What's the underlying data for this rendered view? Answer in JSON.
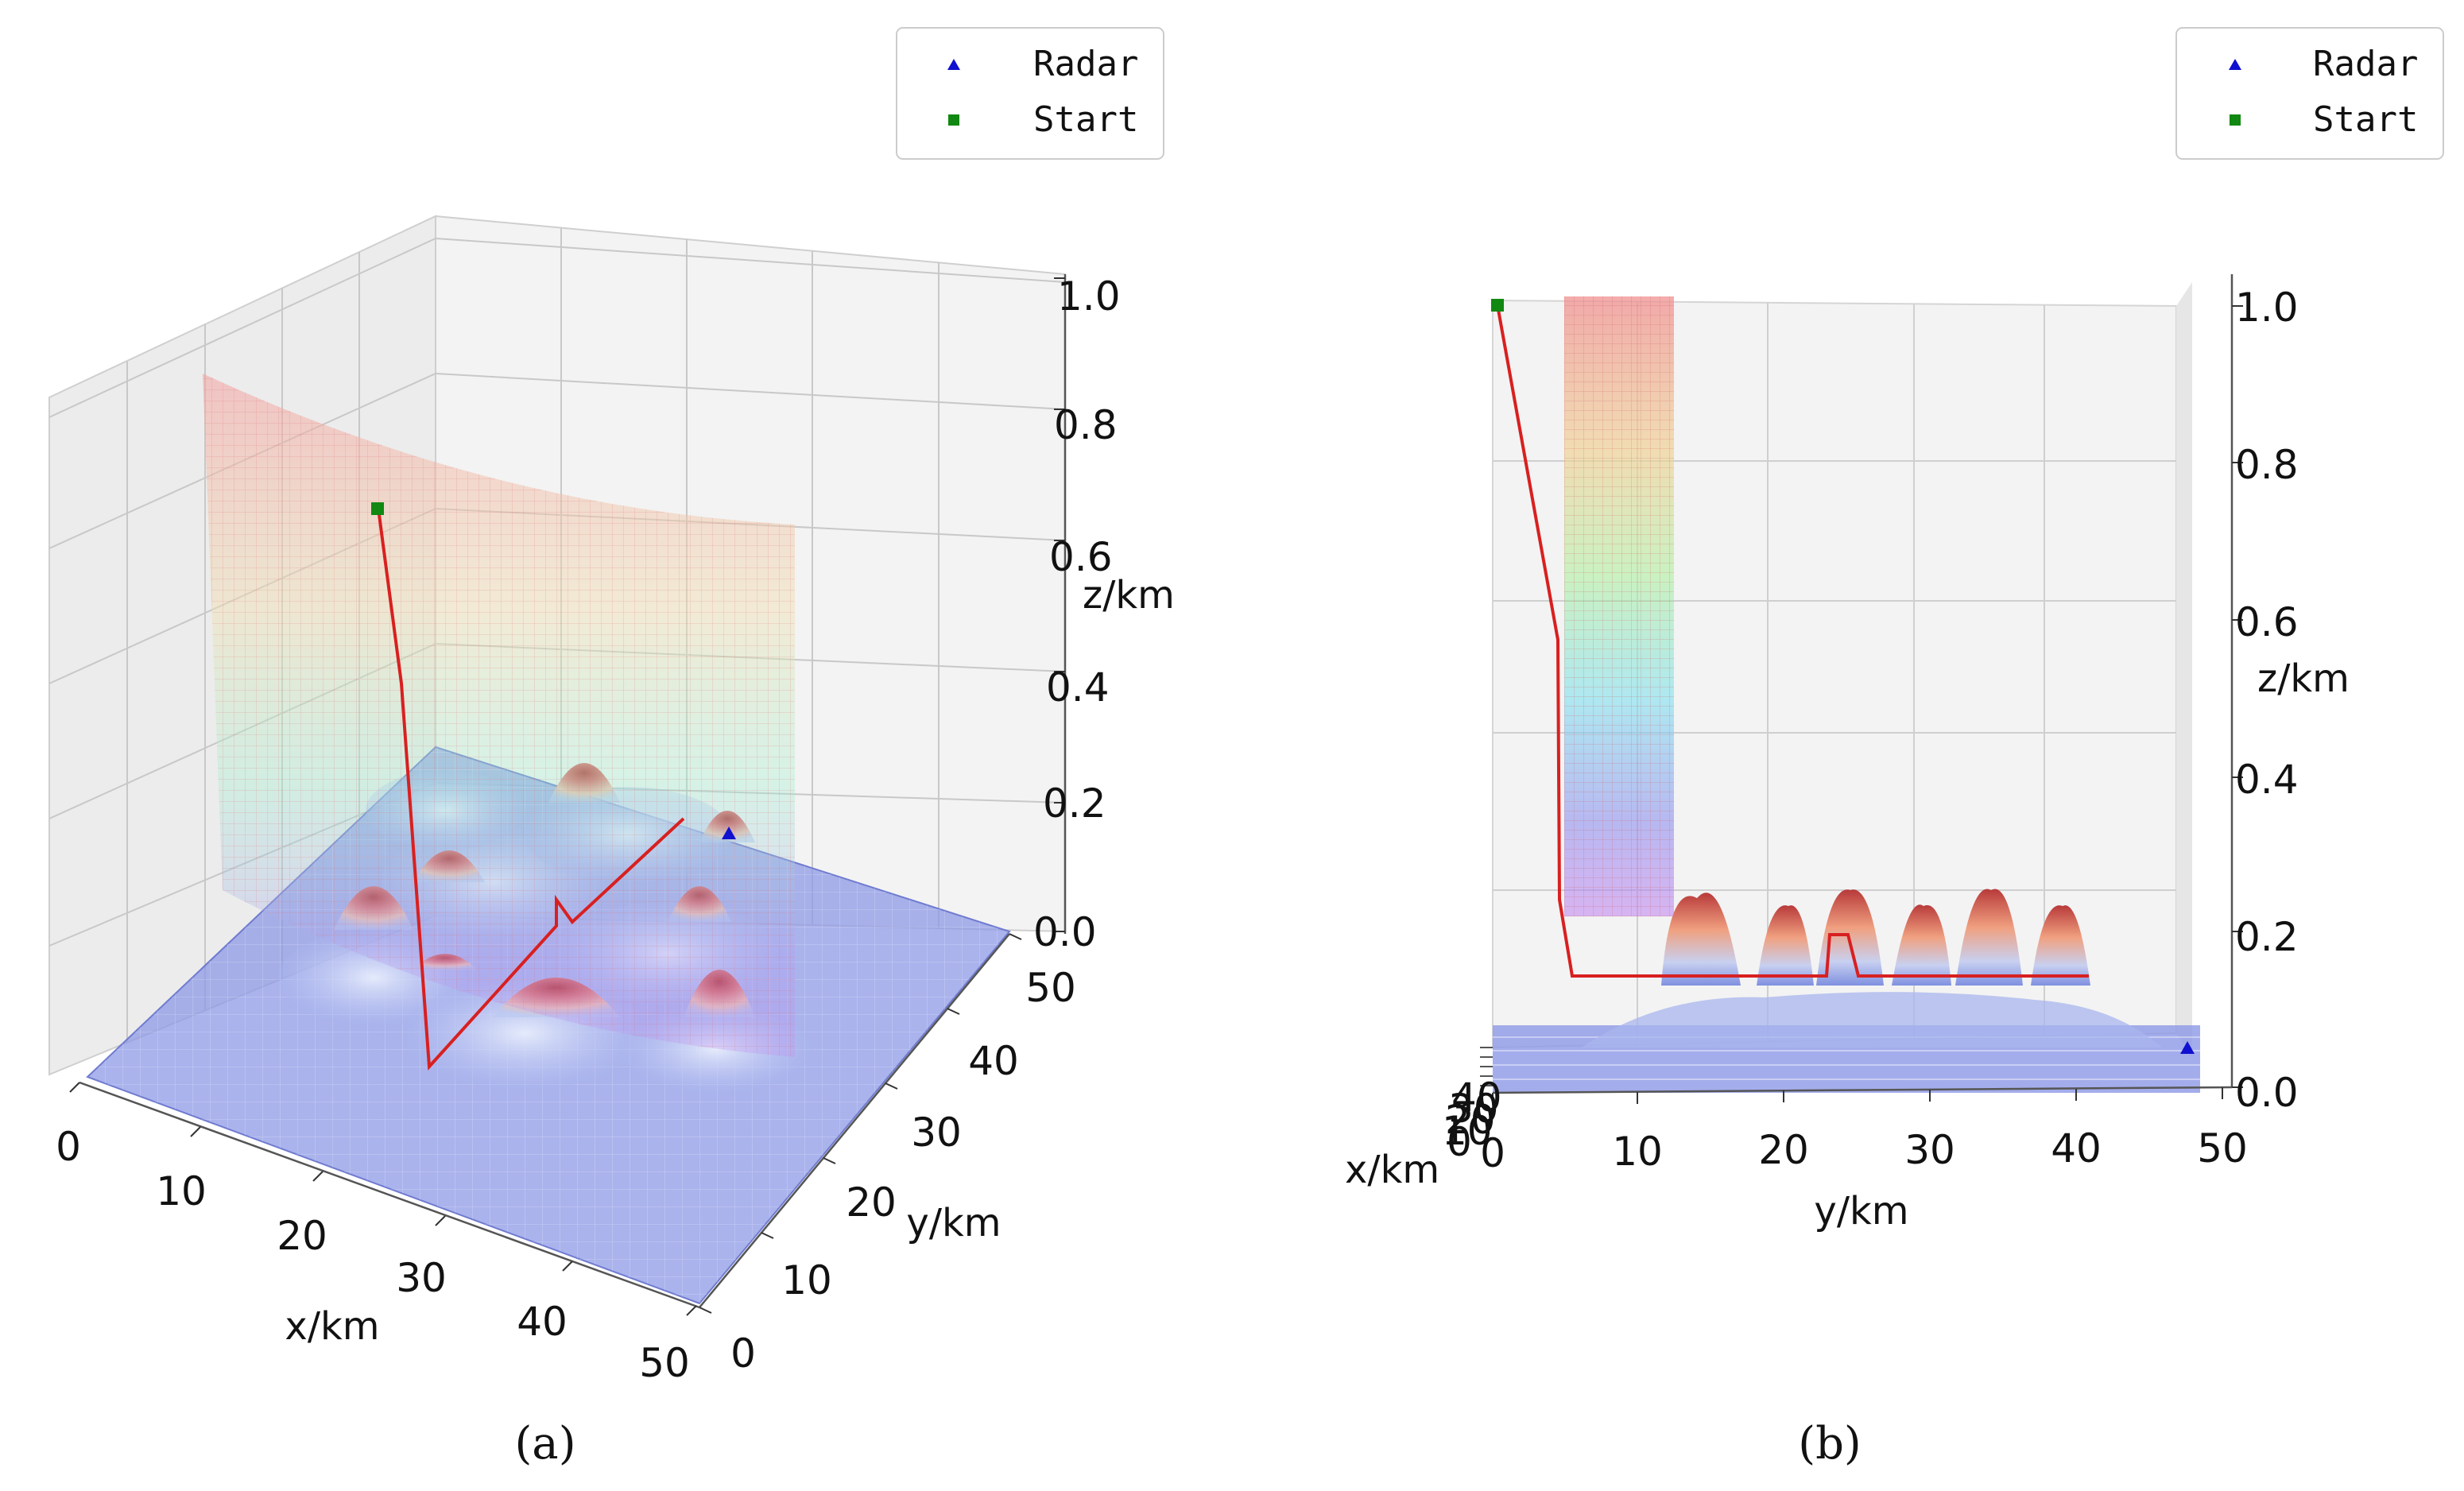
{
  "chart_data": [
    {
      "type": "surface3d",
      "panel": "a",
      "view": "oblique",
      "caption": "(a)",
      "xlabel": "x/km",
      "ylabel": "y/km",
      "zlabel": "z/km",
      "xlim": [
        0,
        50
      ],
      "ylim": [
        0,
        50
      ],
      "zlim": [
        0,
        1.0
      ],
      "x_ticks": [
        "0",
        "10",
        "20",
        "30",
        "40",
        "50"
      ],
      "y_ticks": [
        "0",
        "10",
        "20",
        "30",
        "40",
        "50"
      ],
      "z_ticks": [
        "0.0",
        "0.2",
        "0.4",
        "0.6",
        "0.8",
        "1.0"
      ],
      "legend": [
        {
          "label": "Radar",
          "marker": "triangle",
          "color": "#1010d0"
        },
        {
          "label": "Start",
          "marker": "square",
          "color": "#118811"
        }
      ],
      "series": [
        {
          "name": "Start",
          "x": 4,
          "y": 5,
          "z": 0.72
        },
        {
          "name": "Radar",
          "x": 47,
          "y": 48,
          "z": 0.05
        },
        {
          "name": "path",
          "color": "#d82020",
          "points": [
            [
              4,
              5,
              0.72
            ],
            [
              5,
              6,
              0.45
            ],
            [
              20,
              8,
              0.05
            ],
            [
              25,
              20,
              0.08
            ],
            [
              28,
              30,
              0.12
            ],
            [
              30,
              30,
              0.15
            ],
            [
              32,
              38,
              0.2
            ],
            [
              34,
              44,
              0.2
            ]
          ]
        }
      ]
    },
    {
      "type": "surface3d",
      "panel": "b",
      "view": "side",
      "caption": "(b)",
      "xlabel": "x/km",
      "ylabel": "y/km",
      "zlabel": "z/km",
      "xlim": [
        0,
        50
      ],
      "ylim": [
        0,
        50
      ],
      "zlim": [
        0,
        1.0
      ],
      "x_ticks": [
        "0",
        "10",
        "20",
        "30",
        "40"
      ],
      "y_ticks": [
        "0",
        "10",
        "20",
        "30",
        "40",
        "50"
      ],
      "z_ticks": [
        "0.0",
        "0.2",
        "0.4",
        "0.6",
        "0.8",
        "1.0"
      ],
      "legend": [
        {
          "label": "Radar",
          "marker": "triangle",
          "color": "#1010d0"
        },
        {
          "label": "Start",
          "marker": "square",
          "color": "#118811"
        }
      ],
      "series": [
        {
          "name": "Start",
          "y": 0.5,
          "z": 1.0
        },
        {
          "name": "Radar",
          "y": 48,
          "z": 0.03
        },
        {
          "name": "path",
          "color": "#d82020",
          "points": [
            [
              0.5,
              1.0
            ],
            [
              4.5,
              0.58
            ],
            [
              5,
              0.26
            ],
            [
              6,
              0.15
            ],
            [
              22,
              0.15
            ],
            [
              22.5,
              0.2
            ],
            [
              24,
              0.2
            ],
            [
              24.5,
              0.15
            ],
            [
              41,
              0.15
            ]
          ]
        }
      ]
    }
  ]
}
